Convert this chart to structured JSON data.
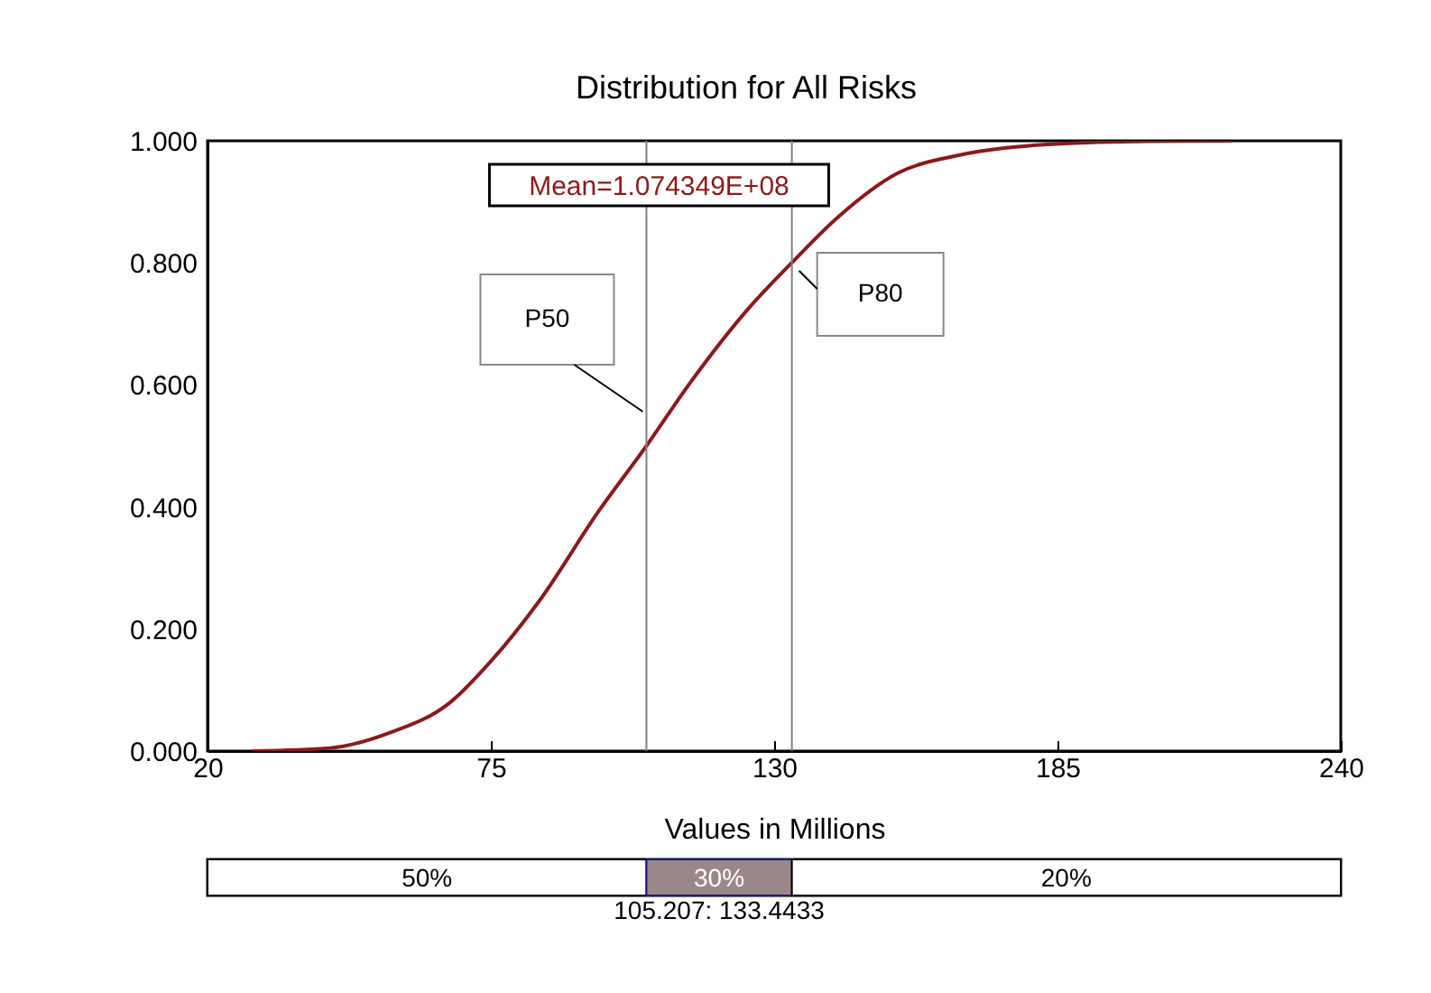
{
  "chart_data": {
    "type": "line",
    "title": "Distribution for All Risks",
    "xlabel": "Values in Millions",
    "series": [
      {
        "color": "#8b1a1a",
        "x": [
          28.7,
          43.8,
          55.4,
          67.0,
          75.1,
          84.4,
          96.0,
          105.2,
          113.4,
          125.0,
          133.4,
          142.4,
          154.0,
          165.6,
          183.0,
          200.0,
          219.0
        ],
        "values": [
          0,
          0.005,
          0.03,
          0.079,
          0.148,
          0.246,
          0.394,
          0.5,
          0.6,
          0.725,
          0.8,
          0.875,
          0.947,
          0.976,
          0.994,
          0.999,
          1.0
        ]
      }
    ],
    "xlim": [
      20,
      240
    ],
    "xticks": [
      20,
      75,
      130,
      185,
      240
    ],
    "ylim": [
      0,
      1
    ],
    "yticks": [
      {
        "value": 0,
        "label": "0.000"
      },
      {
        "value": 0.2,
        "label": "0.200"
      },
      {
        "value": 0.4,
        "label": "0.400"
      },
      {
        "value": 0.6,
        "label": "0.600"
      },
      {
        "value": 0.8,
        "label": "0.800"
      },
      {
        "value": 1,
        "label": "1.000"
      }
    ],
    "ref_lines": [
      {
        "axis": "x",
        "value": 105.207,
        "label": "P50",
        "color": "#808080"
      },
      {
        "axis": "x",
        "value": 133.4433,
        "label": "P80",
        "color": "#808080"
      }
    ],
    "annotations": [
      "Mean=1.074349E+08",
      "50%",
      "30%",
      "20%",
      "105.207: 133.4433"
    ],
    "grid": false
  }
}
